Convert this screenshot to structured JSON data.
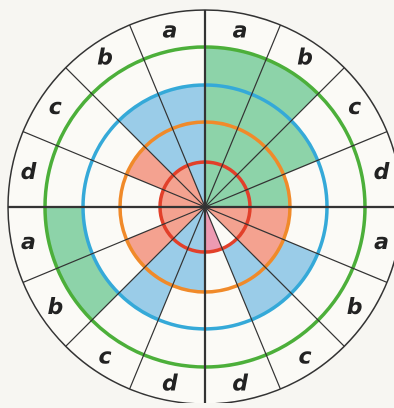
{
  "diagram": {
    "labels_right": [
      "a",
      "b",
      "c",
      "d",
      "a",
      "b",
      "c",
      "d"
    ],
    "labels_left": [
      "a",
      "b",
      "c",
      "d",
      "a",
      "b",
      "c",
      "d"
    ],
    "rings": [
      {
        "name": "red-ring",
        "color": "#e2402a"
      },
      {
        "name": "orange-ring",
        "color": "#f08a2a"
      },
      {
        "name": "blue-ring",
        "color": "#35a9d8"
      },
      {
        "name": "green-ring",
        "color": "#4caf3a"
      }
    ],
    "shading_colors": {
      "green": "#33b36a",
      "blue": "#4aa6dd",
      "red": "#ef5a3c",
      "pink": "#e24a7a"
    },
    "line_color": "#333333"
  }
}
